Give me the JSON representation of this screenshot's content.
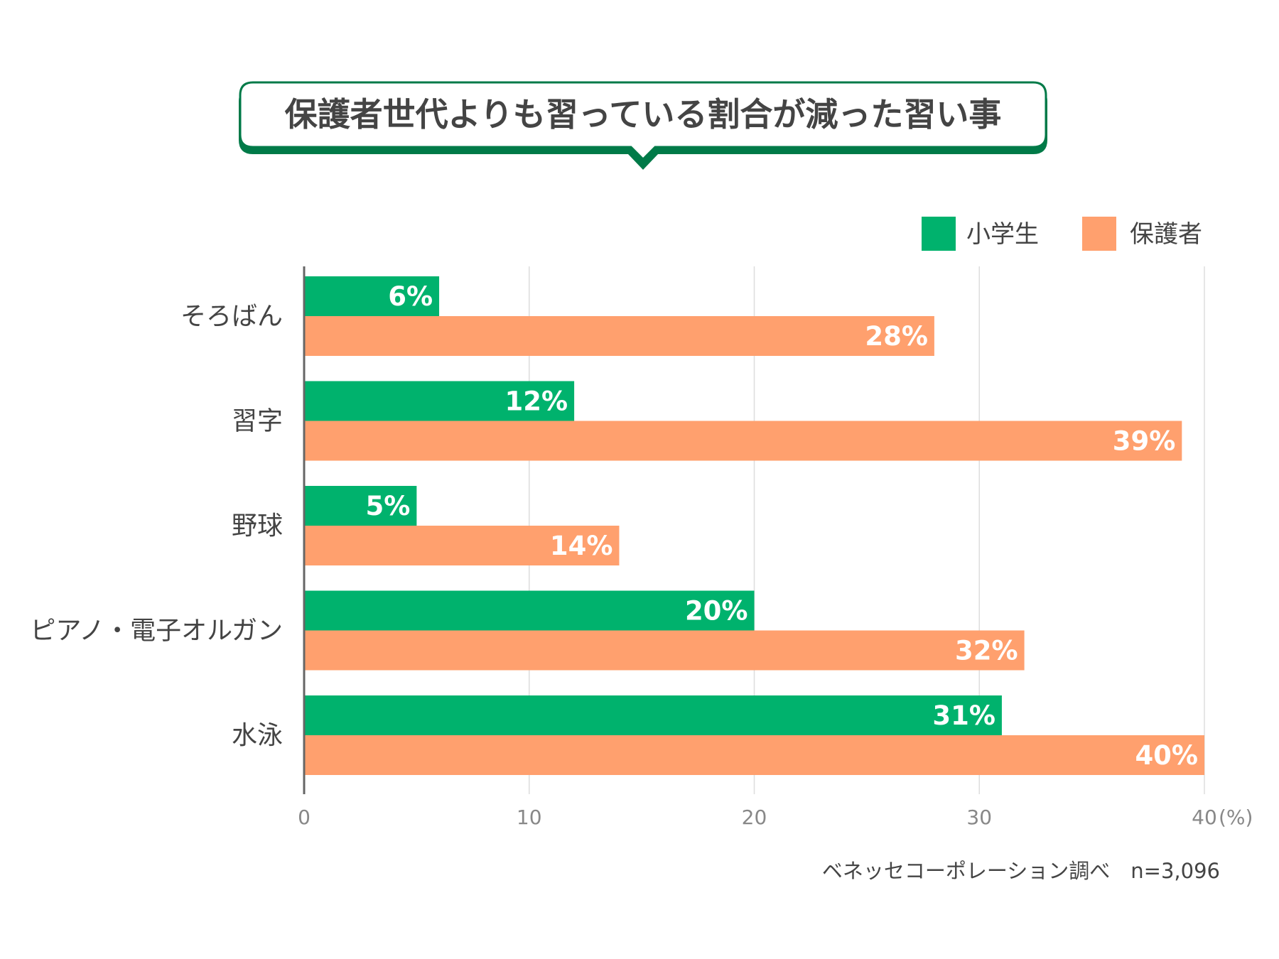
{
  "colors": {
    "green": "#00b26d",
    "orange": "#ffa06e",
    "title_border": "#007a48",
    "text": "#444444",
    "axis_text": "#888888",
    "grid": "#dddddd",
    "axis": "#666666"
  },
  "chart_data": {
    "type": "bar",
    "orientation": "horizontal",
    "title": "保護者世代よりも習っている割合が減った習い事",
    "categories": [
      "そろばん",
      "習字",
      "野球",
      "ピアノ・電子オルガン",
      "水泳"
    ],
    "series": [
      {
        "name": "小学生",
        "values": [
          6,
          12,
          5,
          20,
          31
        ],
        "labels": [
          "6%",
          "12%",
          "5%",
          "20%",
          "31%"
        ]
      },
      {
        "name": "保護者",
        "values": [
          28,
          39,
          14,
          32,
          40
        ],
        "labels": [
          "28%",
          "39%",
          "14%",
          "32%",
          "40%"
        ]
      }
    ],
    "xlim": [
      0,
      40
    ],
    "x_ticks": [
      "0",
      "10",
      "20",
      "30",
      "40"
    ],
    "x_unit": "(%)",
    "grid": true,
    "legend_position": "top-right",
    "source_note": "ベネッセコーポレーション調べ　n=3,096"
  }
}
